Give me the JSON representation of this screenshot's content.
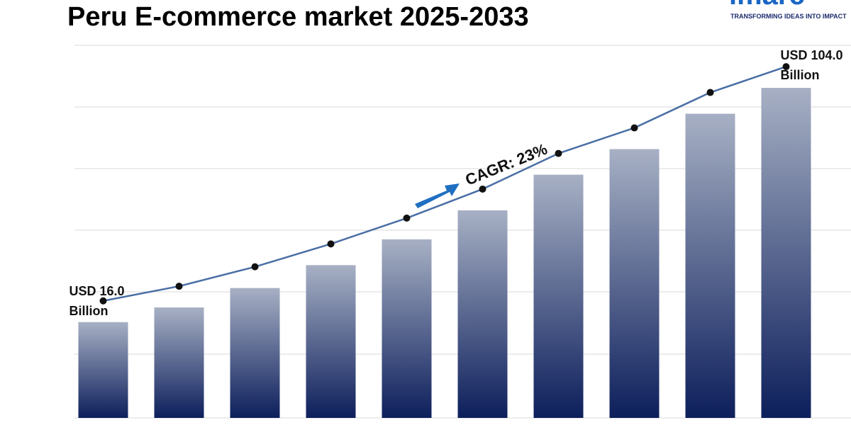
{
  "logo": {
    "name": "imarc",
    "tagline": "TRANSFORMING IDEAS INTO IMPACT"
  },
  "chart_data": {
    "type": "bar",
    "title": "Peru E-commerce market  2025-2033",
    "categories": [
      null,
      null,
      null,
      null,
      null,
      null,
      null,
      null,
      null,
      null
    ],
    "values": [
      16.0,
      21.5,
      28.8,
      37.4,
      47.1,
      58.0,
      71.4,
      81.0,
      94.3,
      104.0
    ],
    "value_labels": [
      "USD 16.0 Billion",
      null,
      null,
      null,
      null,
      null,
      null,
      null,
      null,
      "USD 104.0 Billion"
    ],
    "annotation": "CAGR: 23%",
    "color": "#0d1f5c",
    "line_overlay": true,
    "line_color": "#4a6fa5",
    "ylim": [
      -20,
      120
    ]
  }
}
